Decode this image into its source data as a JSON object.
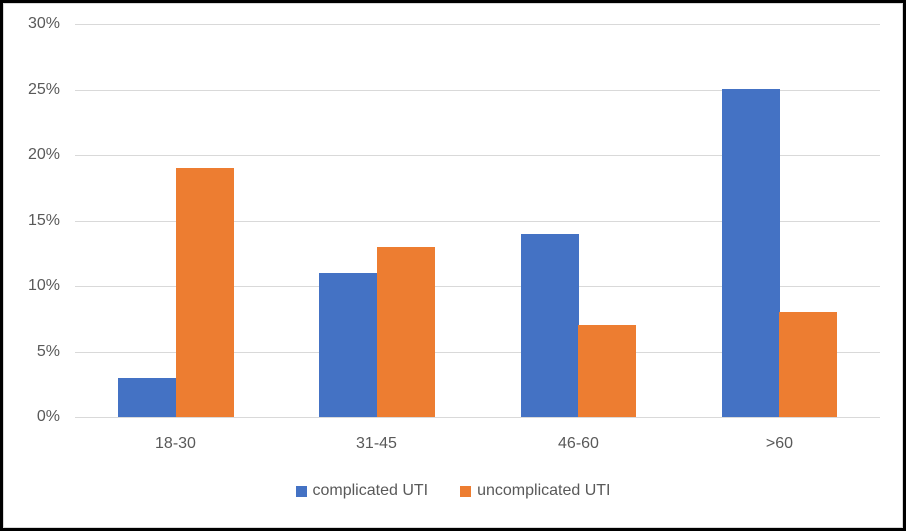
{
  "chart_data": {
    "type": "bar",
    "title": "",
    "categories": [
      "18-30",
      "31-45",
      "46-60",
      ">60"
    ],
    "series": [
      {
        "name": "complicated UTI",
        "color": "#4472c4",
        "values": [
          3,
          11,
          14,
          25
        ]
      },
      {
        "name": "uncomplicated UTI",
        "color": "#ed7d31",
        "values": [
          19,
          13,
          7,
          8
        ]
      }
    ],
    "xlabel": "",
    "ylabel": "",
    "ylim": [
      0,
      30
    ],
    "ytick_step": 5,
    "ytick_labels": [
      "0%",
      "5%",
      "10%",
      "15%",
      "20%",
      "25%",
      "30%"
    ],
    "grid": true,
    "legend_position": "bottom"
  },
  "colors": {
    "axis_text": "#595959",
    "gridline": "#d9d9d9",
    "frame_border": "#000000",
    "chart_border": "#d9d9d9",
    "background": "#ffffff"
  }
}
